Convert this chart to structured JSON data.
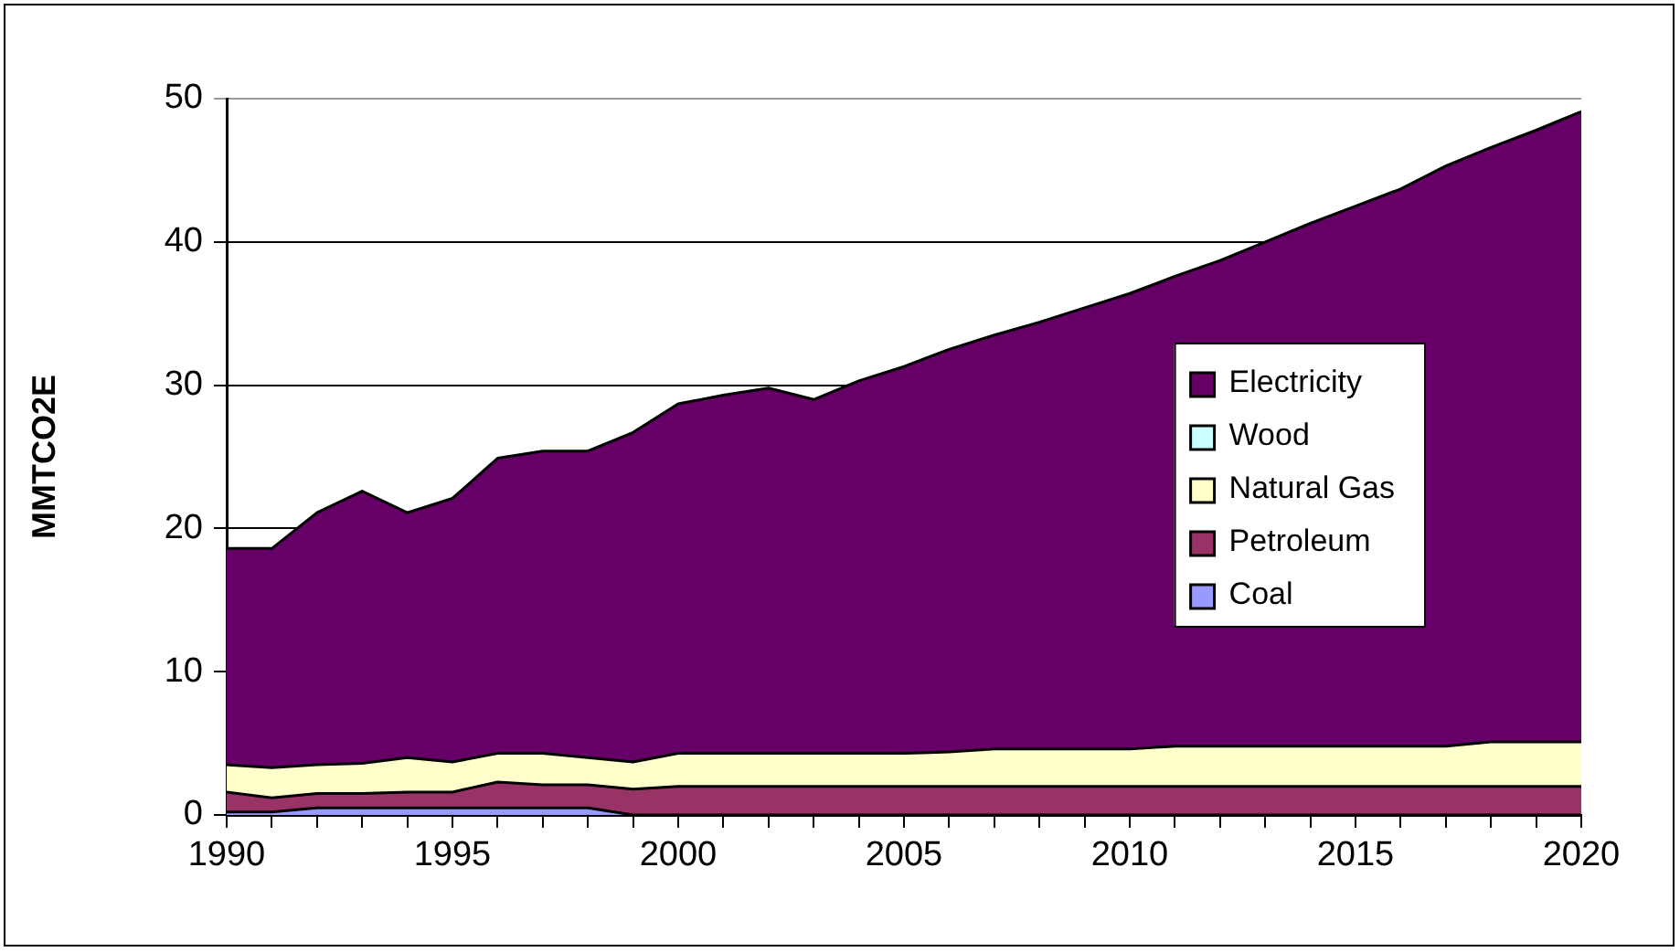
{
  "chart_data": {
    "type": "area",
    "stacked": true,
    "ylabel": "MMTCO2E",
    "x": [
      1990,
      1991,
      1992,
      1993,
      1994,
      1995,
      1996,
      1997,
      1998,
      1999,
      2000,
      2001,
      2002,
      2003,
      2004,
      2005,
      2006,
      2007,
      2008,
      2009,
      2010,
      2011,
      2012,
      2013,
      2014,
      2015,
      2016,
      2017,
      2018,
      2019,
      2020
    ],
    "series": [
      {
        "name": "Coal",
        "color": "#9999ff",
        "values": [
          0.2,
          0.2,
          0.5,
          0.5,
          0.5,
          0.5,
          0.5,
          0.5,
          0.5,
          0,
          0,
          0,
          0,
          0,
          0,
          0,
          0,
          0,
          0,
          0,
          0,
          0,
          0,
          0,
          0,
          0,
          0,
          0,
          0,
          0,
          0
        ]
      },
      {
        "name": "Petroleum",
        "color": "#993366",
        "values": [
          1.4,
          1.0,
          1.0,
          1.0,
          1.1,
          1.1,
          1.8,
          1.6,
          1.6,
          1.8,
          2.0,
          2.0,
          2.0,
          2.0,
          2.0,
          2.0,
          2.0,
          2.0,
          2.0,
          2.0,
          2.0,
          2.0,
          2.0,
          2.0,
          2.0,
          2.0,
          2.0,
          2.0,
          2.0,
          2.0,
          2.0
        ]
      },
      {
        "name": "Natural Gas",
        "color": "#ffffcc",
        "values": [
          1.9,
          2.1,
          2.0,
          2.1,
          2.4,
          2.1,
          2.0,
          2.2,
          1.9,
          1.9,
          2.3,
          2.3,
          2.3,
          2.3,
          2.3,
          2.3,
          2.4,
          2.6,
          2.6,
          2.6,
          2.6,
          2.8,
          2.8,
          2.8,
          2.8,
          2.8,
          2.8,
          2.8,
          3.1,
          3.1,
          3.1
        ]
      },
      {
        "name": "Wood",
        "color": "#ccffff",
        "values": [
          null,
          null,
          null,
          null,
          null,
          null,
          null,
          null,
          null,
          null,
          null,
          null,
          null,
          null,
          null,
          null,
          null,
          null,
          null,
          null,
          null,
          null,
          null,
          null,
          null,
          null,
          null,
          null,
          null,
          null,
          null
        ]
      },
      {
        "name": "Electricity",
        "color": "#660066",
        "values": [
          15.1,
          15.3,
          17.6,
          19.0,
          17.1,
          18.4,
          20.6,
          21.1,
          21.4,
          23.0,
          24.4,
          25.0,
          25.5,
          24.7,
          26.0,
          27.0,
          28.1,
          28.9,
          29.8,
          30.8,
          31.8,
          32.8,
          33.9,
          35.2,
          36.5,
          37.7,
          38.9,
          40.5,
          41.5,
          42.7,
          44.0
        ]
      }
    ],
    "xlim": [
      1990,
      2020
    ],
    "xticks": [
      1990,
      {
        "value": 1991,
        "label": null
      },
      {
        "value": 1992,
        "label": null
      },
      {
        "value": 1993,
        "label": null
      },
      {
        "value": 1994,
        "label": null
      },
      1995,
      {
        "value": 1996,
        "label": null
      },
      {
        "value": 1997,
        "label": null
      },
      {
        "value": 1998,
        "label": null
      },
      {
        "value": 1999,
        "label": null
      },
      2000,
      {
        "value": 2001,
        "label": null
      },
      {
        "value": 2002,
        "label": null
      },
      {
        "value": 2003,
        "label": null
      },
      {
        "value": 2004,
        "label": null
      },
      2005,
      {
        "value": 2006,
        "label": null
      },
      {
        "value": 2007,
        "label": null
      },
      {
        "value": 2008,
        "label": null
      },
      {
        "value": 2009,
        "label": null
      },
      2010,
      {
        "value": 2011,
        "label": null
      },
      {
        "value": 2012,
        "label": null
      },
      {
        "value": 2013,
        "label": null
      },
      {
        "value": 2014,
        "label": null
      },
      2015,
      {
        "value": 2016,
        "label": null
      },
      {
        "value": 2017,
        "label": null
      },
      {
        "value": 2018,
        "label": null
      },
      {
        "value": 2019,
        "label": null
      },
      2020
    ],
    "ylim": [
      0,
      50
    ],
    "yticks": [
      0,
      10,
      20,
      30,
      40,
      50
    ],
    "grid": "y",
    "legend": "right"
  }
}
